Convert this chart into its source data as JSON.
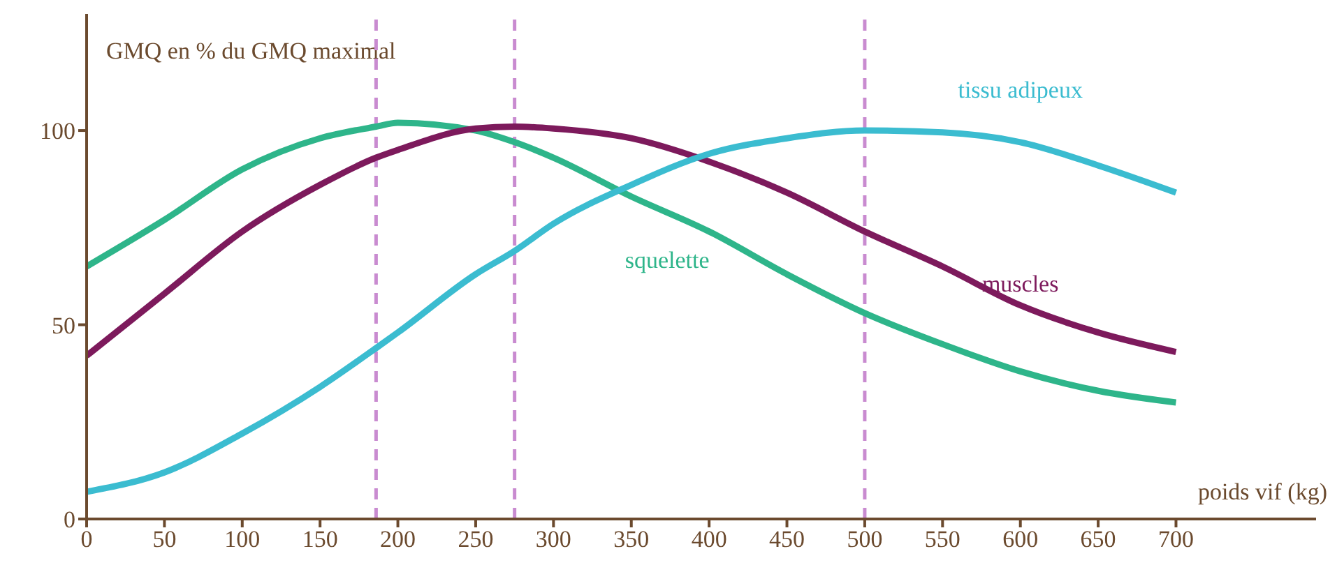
{
  "chart_data": {
    "type": "line",
    "xlabel": "poids vif (kg)",
    "ylabel": "GMQ en % du GMQ maximal",
    "x": [
      0,
      50,
      100,
      150,
      186,
      200,
      250,
      275,
      300,
      350,
      400,
      450,
      500,
      550,
      600,
      650,
      700
    ],
    "series": [
      {
        "name": "squelette",
        "color": "#2eb58a",
        "values": [
          65,
          77,
          90,
          98,
          101,
          102,
          100,
          97,
          93,
          83,
          74,
          63,
          53,
          45,
          38,
          33,
          30
        ]
      },
      {
        "name": "muscles",
        "color": "#7d1a5c",
        "values": [
          42,
          58,
          74,
          86,
          93,
          95,
          100.5,
          101,
          100.5,
          98,
          92,
          84,
          74,
          65,
          55,
          48,
          43
        ]
      },
      {
        "name": "tissu adipeux",
        "color": "#3bbcd0",
        "values": [
          7,
          12,
          22,
          34,
          44,
          48,
          63,
          69,
          76,
          86,
          94,
          98,
          100,
          99.5,
          97,
          91,
          84
        ]
      }
    ],
    "xlim": [
      0,
      790
    ],
    "ylim": [
      0,
      130
    ],
    "xticks": [
      0,
      50,
      100,
      150,
      200,
      250,
      300,
      350,
      400,
      450,
      500,
      550,
      600,
      650,
      700
    ],
    "yticks": [
      0,
      50,
      100
    ],
    "ref_lines": [
      {
        "axis": "x",
        "value": 186,
        "color": "#c98bd0",
        "line_style": "dashed"
      },
      {
        "axis": "x",
        "value": 275,
        "color": "#c98bd0",
        "line_style": "dashed"
      },
      {
        "axis": "x",
        "value": 500,
        "color": "#c98bd0",
        "line_style": "dashed"
      }
    ],
    "grid": false,
    "legend": false,
    "marker": "none",
    "line_style": "solid"
  }
}
